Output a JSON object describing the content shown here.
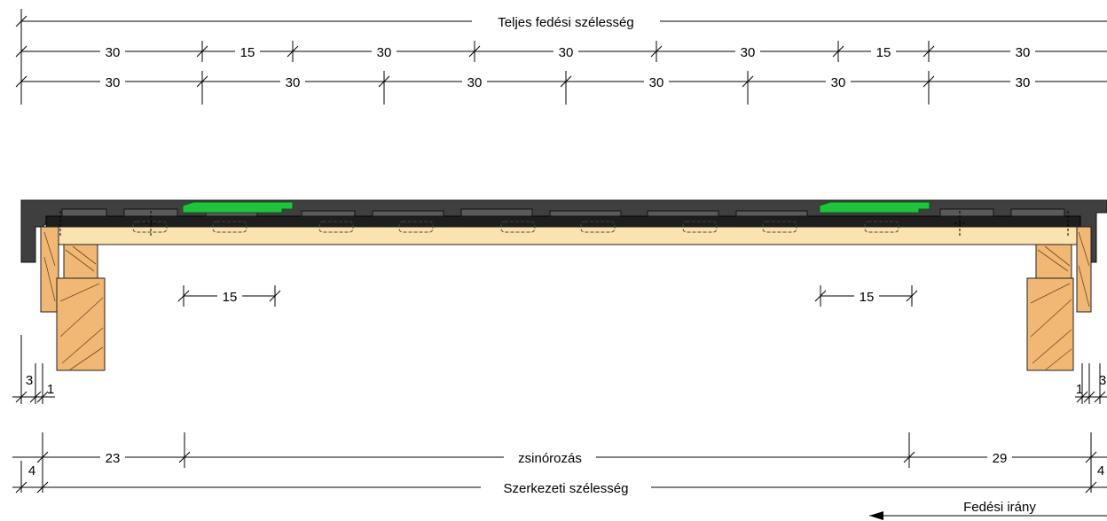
{
  "dimensions": {
    "top_title": "Teljes fedési szélesség",
    "row1": [
      "30",
      "15",
      "30",
      "30",
      "30",
      "15",
      "30"
    ],
    "row2": [
      "30",
      "30",
      "30",
      "30",
      "30",
      "30"
    ],
    "inner_gaps": [
      "15",
      "15"
    ],
    "left_small_a": "3",
    "left_small_b": "1",
    "right_small_a": "1",
    "right_small_b": "3",
    "left_end": "4",
    "left_span": "23",
    "middle_span": "zsinórozás",
    "right_span": "29",
    "right_end": "4",
    "bottom_title": "Szerkezeti szélesség",
    "direction_label": "Fedési irány"
  },
  "colors": {
    "cover": "#3f3f3f",
    "green_panel": "#22c33c",
    "board": "#fbe3b0",
    "timber": "#f1b774"
  }
}
